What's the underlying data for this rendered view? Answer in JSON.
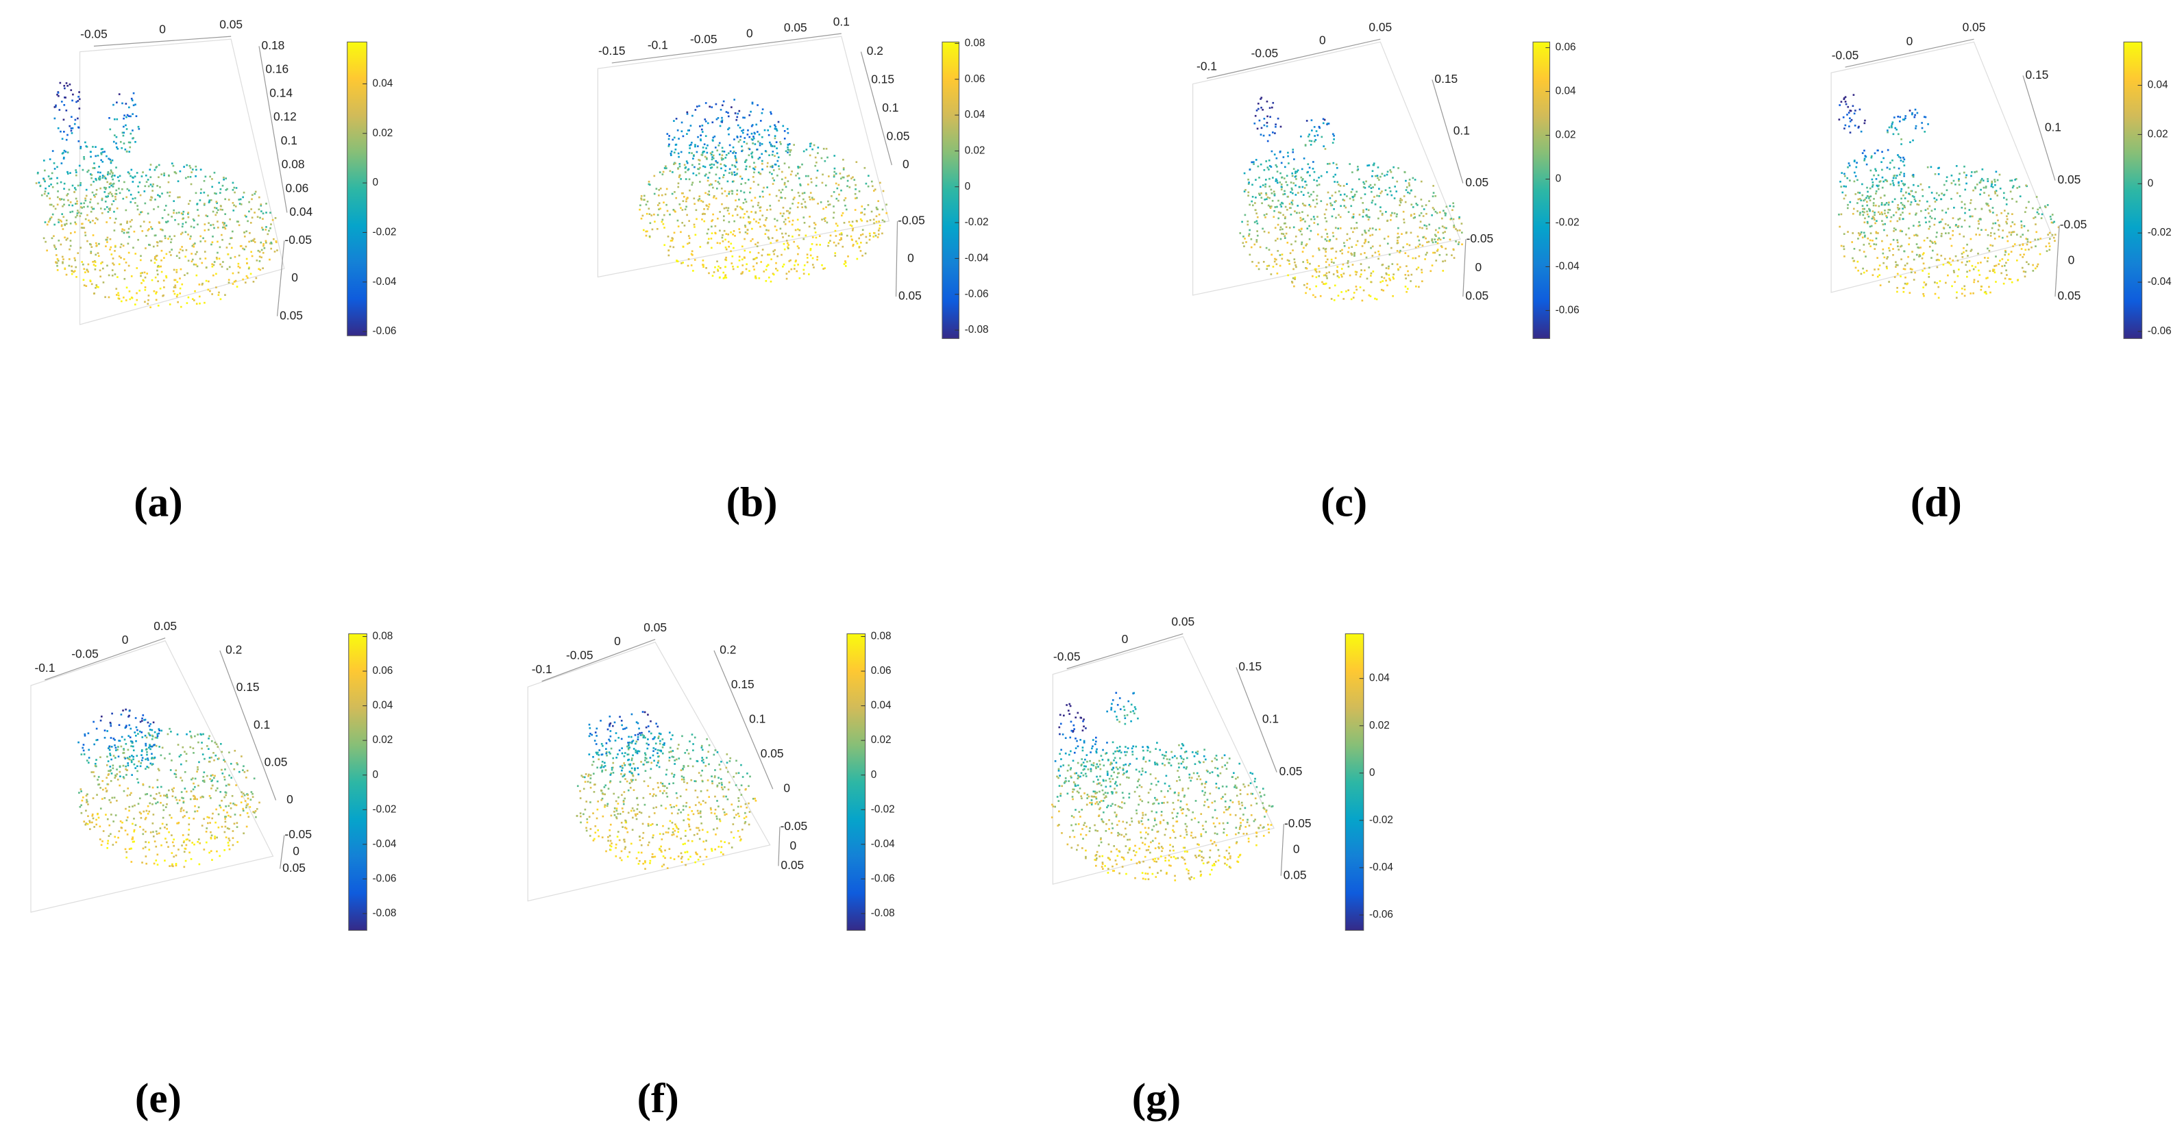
{
  "chart_data": [
    {
      "type": "scatter3d",
      "label": "(a)",
      "xticks": [
        -0.05,
        0,
        0.05
      ],
      "zticks": [
        0.18,
        0.16,
        0.14,
        0.12,
        0.1,
        0.08,
        0.06,
        0.04
      ],
      "yticks": [
        -0.05,
        0,
        0.05
      ],
      "colorbar": {
        "clim": [
          -0.0617,
          0.0569
        ],
        "ticks": [
          -0.06,
          -0.04,
          -0.02,
          0,
          0.02,
          0.04
        ]
      }
    },
    {
      "type": "scatter3d",
      "label": "(b)",
      "xticks": [
        -0.15,
        -0.1,
        -0.05,
        0,
        0.05,
        0.1
      ],
      "zticks": [
        0.2,
        0.15,
        0.1,
        0.05,
        0
      ],
      "yticks": [
        -0.05,
        0,
        0.05
      ],
      "colorbar": {
        "clim": [
          -0.0847,
          0.0808
        ],
        "ticks": [
          -0.08,
          -0.06,
          -0.04,
          -0.02,
          0,
          0.02,
          0.04,
          0.06,
          0.08
        ]
      }
    },
    {
      "type": "scatter3d",
      "label": "(c)",
      "xticks": [
        -0.1,
        -0.05,
        0,
        0.05
      ],
      "zticks": [
        0.15,
        0.1,
        0.05
      ],
      "yticks": [
        -0.05,
        0,
        0.05
      ],
      "colorbar": {
        "clim": [
          -0.0728,
          0.0626
        ],
        "ticks": [
          -0.06,
          -0.04,
          -0.02,
          0,
          0.02,
          0.04,
          0.06
        ]
      }
    },
    {
      "type": "scatter3d",
      "label": "(d)",
      "xticks": [
        -0.05,
        0,
        0.05
      ],
      "zticks": [
        0.15,
        0.1,
        0.05
      ],
      "yticks": [
        -0.05,
        0,
        0.05
      ],
      "colorbar": {
        "clim": [
          -0.0629,
          0.0576
        ],
        "ticks": [
          -0.06,
          -0.04,
          -0.02,
          0,
          0.02,
          0.04
        ]
      }
    },
    {
      "type": "scatter3d",
      "label": "(e)",
      "xticks": [
        -0.1,
        -0.05,
        0,
        0.05
      ],
      "zticks": [
        0.2,
        0.15,
        0.1,
        0.05,
        0
      ],
      "yticks": [
        -0.05,
        0,
        0.05
      ],
      "colorbar": {
        "clim": [
          -0.0897,
          0.0816
        ],
        "ticks": [
          -0.08,
          -0.06,
          -0.04,
          -0.02,
          0,
          0.02,
          0.04,
          0.06,
          0.08
        ]
      }
    },
    {
      "type": "scatter3d",
      "label": "(f)",
      "xticks": [
        -0.1,
        -0.05,
        0,
        0.05
      ],
      "zticks": [
        0.2,
        0.15,
        0.1,
        0.05,
        0
      ],
      "yticks": [
        -0.05,
        0,
        0.05
      ],
      "colorbar": {
        "clim": [
          -0.0897,
          0.0816
        ],
        "ticks": [
          -0.08,
          -0.06,
          -0.04,
          -0.02,
          0,
          0.02,
          0.04,
          0.06,
          0.08
        ]
      }
    },
    {
      "type": "scatter3d",
      "label": "(g)",
      "xticks": [
        -0.05,
        0,
        0.05
      ],
      "zticks": [
        0.15,
        0.1,
        0.05
      ],
      "yticks": [
        -0.05,
        0,
        0.05
      ],
      "colorbar": {
        "clim": [
          -0.0665,
          0.0589
        ],
        "ticks": [
          -0.06,
          -0.04,
          -0.02,
          0,
          0.02,
          0.04
        ]
      }
    }
  ]
}
